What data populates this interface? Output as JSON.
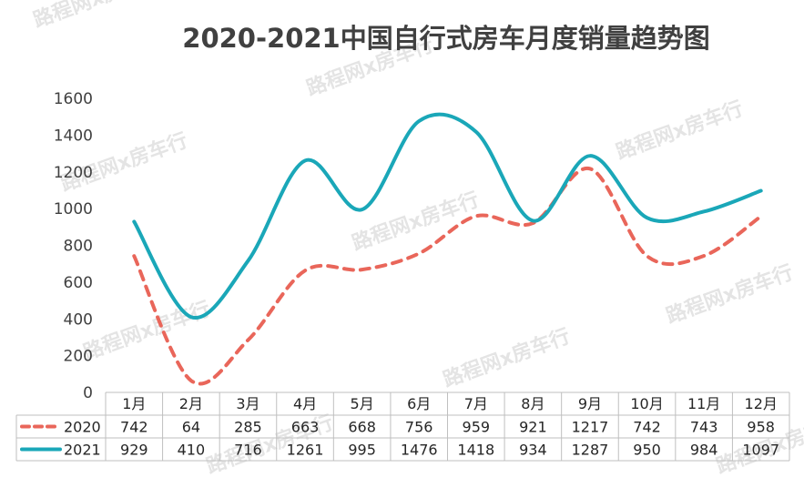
{
  "watermark_text": "路程网x房车行",
  "colors": {
    "series_2020": "#E9665A",
    "series_2021": "#1AA7B8",
    "axis": "#bfbfbf",
    "text": "#404040"
  },
  "chart_data": {
    "type": "line",
    "title": "2020-2021中国自行式房车月度销量趋势图",
    "categories": [
      "1月",
      "2月",
      "3月",
      "4月",
      "5月",
      "6月",
      "7月",
      "8月",
      "9月",
      "10月",
      "11月",
      "12月"
    ],
    "series": [
      {
        "name": "2020",
        "values": [
          742,
          64,
          285,
          663,
          668,
          756,
          959,
          921,
          1217,
          742,
          743,
          958
        ],
        "style": "dashed",
        "color": "#E9665A"
      },
      {
        "name": "2021",
        "values": [
          929,
          410,
          716,
          1261,
          995,
          1476,
          1418,
          934,
          1287,
          950,
          984,
          1097
        ],
        "style": "solid",
        "color": "#1AA7B8"
      }
    ],
    "ylim": [
      0,
      1600
    ],
    "yticks": [
      0,
      200,
      400,
      600,
      800,
      1000,
      1200,
      1400,
      1600
    ],
    "grid": false,
    "legend": "data table below chart",
    "smooth": true
  }
}
